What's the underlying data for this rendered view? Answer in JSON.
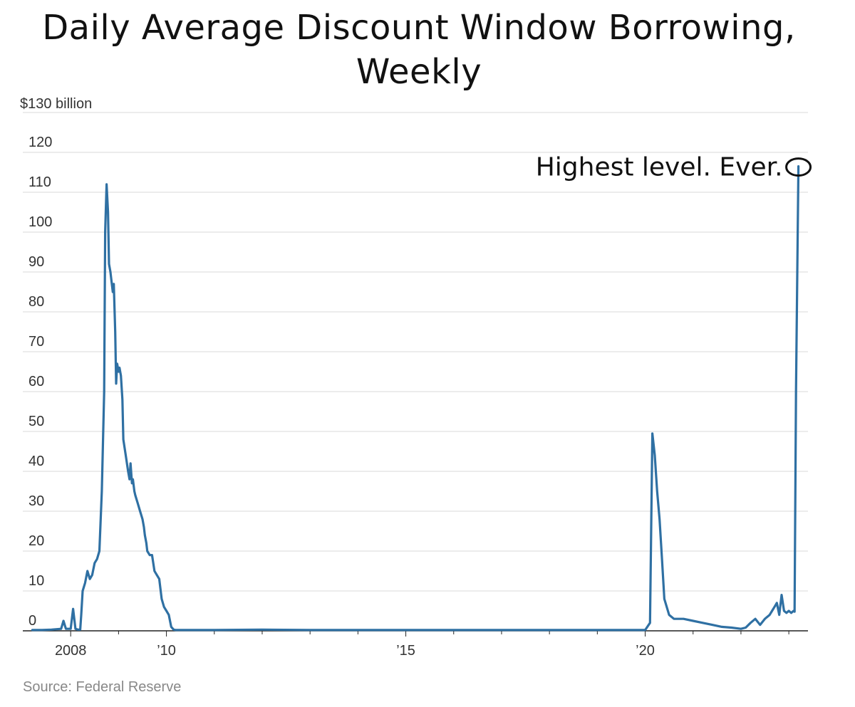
{
  "chart_data": {
    "type": "line",
    "title": "Daily Average Discount Window Borrowing, Weekly",
    "ylabel_top": "$130 billion",
    "ylim": [
      0,
      130
    ],
    "xlim": [
      2007.0,
      2023.4
    ],
    "y_ticks": [
      {
        "value": 120,
        "label": "120"
      },
      {
        "value": 110,
        "label": "110"
      },
      {
        "value": 100,
        "label": "100"
      },
      {
        "value": 90,
        "label": "90"
      },
      {
        "value": 80,
        "label": "80"
      },
      {
        "value": 70,
        "label": "70"
      },
      {
        "value": 60,
        "label": "60"
      },
      {
        "value": 50,
        "label": "50"
      },
      {
        "value": 40,
        "label": "40"
      },
      {
        "value": 30,
        "label": "30"
      },
      {
        "value": 20,
        "label": "20"
      },
      {
        "value": 10,
        "label": "10"
      },
      {
        "value": 0,
        "label": "0"
      }
    ],
    "x_ticks": [
      {
        "value": 2008,
        "label": "2008"
      },
      {
        "value": 2010,
        "label": "’10"
      },
      {
        "value": 2015,
        "label": "’15"
      },
      {
        "value": 2020,
        "label": "’20"
      }
    ],
    "annotation": {
      "text": "Highest level. Ever.",
      "x": 2023.2,
      "y": 116.5
    },
    "color": "#2f70a3",
    "source": "Source: Federal Reserve",
    "series": [
      {
        "x": [
          2007.2,
          2007.4,
          2007.6,
          2007.8,
          2007.85,
          2007.9,
          2007.95,
          2008.0,
          2008.05,
          2008.1,
          2008.15,
          2008.2,
          2008.22,
          2008.25,
          2008.3,
          2008.35,
          2008.4,
          2008.45,
          2008.5,
          2008.55,
          2008.6,
          2008.65,
          2008.7,
          2008.72,
          2008.75,
          2008.78,
          2008.8,
          2008.83,
          2008.85,
          2008.88,
          2008.9,
          2008.93,
          2008.95,
          2008.97,
          2009.0,
          2009.02,
          2009.05,
          2009.08,
          2009.1,
          2009.15,
          2009.2,
          2009.23,
          2009.25,
          2009.28,
          2009.3,
          2009.33,
          2009.35,
          2009.4,
          2009.45,
          2009.5,
          2009.53,
          2009.55,
          2009.58,
          2009.6,
          2009.65,
          2009.7,
          2009.75,
          2009.8,
          2009.85,
          2009.9,
          2009.95,
          2010.0,
          2010.05,
          2010.1,
          2010.15,
          2010.2,
          2010.25,
          2010.3,
          2010.35,
          2010.4,
          2010.45,
          2010.48,
          2010.52,
          2010.6,
          2011.0,
          2012.0,
          2013.0,
          2014.0,
          2015.0,
          2016.0,
          2017.0,
          2018.0,
          2019.0,
          2019.9,
          2020.0,
          2020.1,
          2020.15,
          2020.2,
          2020.25,
          2020.3,
          2020.35,
          2020.4,
          2020.5,
          2020.6,
          2020.8,
          2021.0,
          2021.2,
          2021.4,
          2021.6,
          2021.8,
          2022.0,
          2022.1,
          2022.2,
          2022.3,
          2022.4,
          2022.5,
          2022.6,
          2022.65,
          2022.7,
          2022.75,
          2022.8,
          2022.85,
          2022.9,
          2022.95,
          2023.0,
          2023.05,
          2023.1,
          2023.12,
          2023.15,
          2023.2
        ],
        "y": [
          0.2,
          0.2,
          0.3,
          0.5,
          2.5,
          0.5,
          0.5,
          0.5,
          5.5,
          0.5,
          0.3,
          0.3,
          4.0,
          10.0,
          12.0,
          15.0,
          13.0,
          14.0,
          17.0,
          18.0,
          20.0,
          35.0,
          60.0,
          100.0,
          112.0,
          105.0,
          92.0,
          90.0,
          88.0,
          85.0,
          87.0,
          75.0,
          62.0,
          67.0,
          65.0,
          66.0,
          64.0,
          58.0,
          48.0,
          44.0,
          40.0,
          38.0,
          42.0,
          37.0,
          38.0,
          35.0,
          34.0,
          32.0,
          30.0,
          28.0,
          26.0,
          24.0,
          22.0,
          20.0,
          19.0,
          19.0,
          15.0,
          14.0,
          13.0,
          8.0,
          6.0,
          5.0,
          4.0,
          1.0,
          0.3,
          0.2,
          0.2,
          0.2,
          0.2,
          0.2,
          0.2,
          0.2,
          0.2,
          0.2,
          0.2,
          0.3,
          0.2,
          0.2,
          0.2,
          0.2,
          0.2,
          0.2,
          0.2,
          0.2,
          0.2,
          2.0,
          49.5,
          44.0,
          35.0,
          28.0,
          18.0,
          8.0,
          4.0,
          3.0,
          3.0,
          2.5,
          2.0,
          1.5,
          1.0,
          0.8,
          0.5,
          0.8,
          2.0,
          3.0,
          1.5,
          3.0,
          4.0,
          5.0,
          6.0,
          7.0,
          4.0,
          9.0,
          5.0,
          4.5,
          5.0,
          4.5,
          5.0,
          4.8,
          60.0,
          116.5
        ]
      }
    ]
  }
}
